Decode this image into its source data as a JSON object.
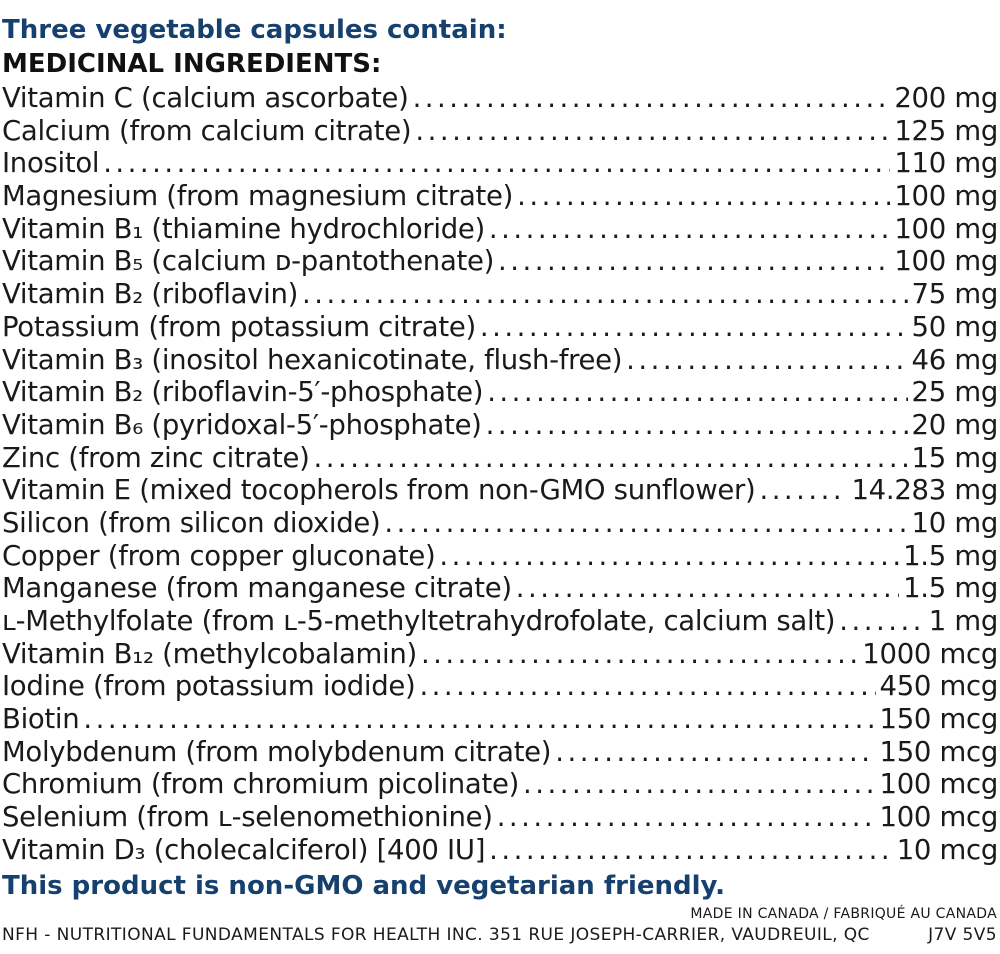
{
  "header": "Three vegetable capsules contain:",
  "subheader": "MEDICINAL INGREDIENTS:",
  "ingredients": [
    {
      "name": "Vitamin C (calcium ascorbate)",
      "amount": "200 mg"
    },
    {
      "name": "Calcium (from calcium citrate)",
      "amount": "125 mg"
    },
    {
      "name": "Inositol",
      "amount": "110 mg"
    },
    {
      "name": "Magnesium (from magnesium citrate)",
      "amount": "100 mg"
    },
    {
      "name": "Vitamin B₁ (thiamine hydrochloride)",
      "amount": "100 mg"
    },
    {
      "name": "Vitamin B₅ (calcium ᴅ-pantothenate)",
      "amount": "100 mg"
    },
    {
      "name": "Vitamin B₂ (riboflavin)",
      "amount": "75 mg"
    },
    {
      "name": "Potassium (from potassium citrate)",
      "amount": "50 mg"
    },
    {
      "name": "Vitamin B₃ (inositol hexanicotinate, flush-free)",
      "amount": "46 mg"
    },
    {
      "name": "Vitamin B₂ (riboflavin-5′-phosphate)",
      "amount": "25 mg"
    },
    {
      "name": "Vitamin B₆ (pyridoxal-5′-phosphate)",
      "amount": "20 mg"
    },
    {
      "name": "Zinc (from zinc citrate)",
      "amount": "15 mg"
    },
    {
      "name": "Vitamin E (mixed tocopherols from non-GMO sunflower)",
      "amount": "14.283 mg"
    },
    {
      "name": "Silicon (from silicon dioxide)",
      "amount": "10 mg"
    },
    {
      "name": "Copper (from copper gluconate)",
      "amount": "1.5 mg"
    },
    {
      "name": "Manganese (from manganese citrate)",
      "amount": "1.5 mg"
    },
    {
      "name": "ʟ-Methylfolate (from ʟ-5-methyltetrahydrofolate, calcium salt)",
      "amount": "1 mg"
    },
    {
      "name": "Vitamin B₁₂ (methylcobalamin)",
      "amount": "1000 mcg"
    },
    {
      "name": "Iodine (from potassium iodide)",
      "amount": "450 mcg"
    },
    {
      "name": "Biotin",
      "amount": "150 mcg"
    },
    {
      "name": "Molybdenum (from molybdenum citrate)",
      "amount": "150 mcg"
    },
    {
      "name": "Chromium (from chromium picolinate)",
      "amount": "100 mcg"
    },
    {
      "name": "Selenium (from ʟ-selenomethionine)",
      "amount": "100 mcg"
    },
    {
      "name": "Vitamin D₃ (cholecalciferol) [400 IU]",
      "amount": "10 mcg"
    }
  ],
  "footer_note": "This product is non-GMO and vegetarian friendly.",
  "made_in": "MADE IN CANADA / FABRIQUÉ AU CANADA",
  "company_line": "NFH - NUTRITIONAL FUNDAMENTALS FOR HEALTH INC. 351 RUE JOSEPH-CARRIER, VAUDREUIL, QC",
  "postal_code": "J7V 5V5",
  "colors": {
    "heading_blue": "#16406e",
    "text": "#1a1a1a"
  }
}
